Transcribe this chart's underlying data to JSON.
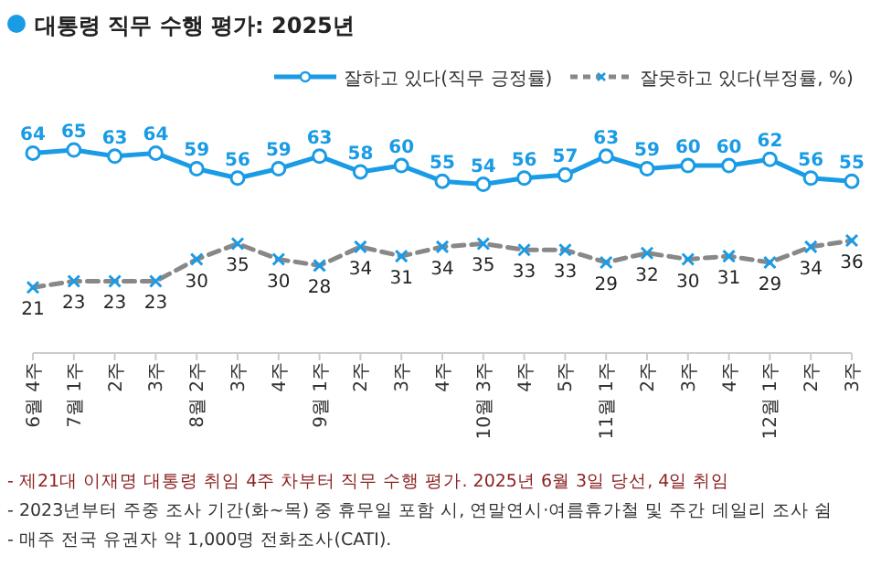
{
  "chart_data": {
    "type": "line",
    "title": "대통령 직무 수행 평가: 2025년",
    "categories": [
      "6월 4주",
      "7월 1주",
      "2주",
      "3주",
      "8월 2주",
      "3주",
      "4주",
      "9월 1주",
      "2주",
      "3주",
      "4주",
      "10월 3주",
      "4주",
      "5주",
      "11월 1주",
      "2주",
      "3주",
      "4주",
      "12월 1주",
      "2주",
      "3주"
    ],
    "series": [
      {
        "name": "잘하고 있다(직무 긍정률)",
        "color": "#1a9be6",
        "marker": "circle",
        "line_style": "solid",
        "values": [
          64,
          65,
          63,
          64,
          59,
          56,
          59,
          63,
          58,
          60,
          55,
          54,
          56,
          57,
          63,
          59,
          60,
          60,
          62,
          56,
          55
        ]
      },
      {
        "name": "잘못하고 있다(부정률, %)",
        "color": "#888888",
        "marker": "cross",
        "line_style": "dashed",
        "values": [
          21,
          23,
          23,
          23,
          30,
          35,
          30,
          28,
          34,
          31,
          34,
          35,
          33,
          33,
          29,
          32,
          30,
          31,
          29,
          34,
          36
        ]
      }
    ],
    "tick_labels": "x",
    "data_labels": true,
    "legend": "top right",
    "annotations": [
      "- 제21대 이재명 대통령 취임 4주 차부터 직무 수행 평가. 2025년 6월 3일 당선, 4일 취임",
      "- 2023년부터 주중 조사 기간(화~목) 중 휴무일 포함 시, 연말연시·여름휴가철 및 주간 데일리 조사 쉼",
      "- 매주 전국 유권자 약 1,000명 전화조사(CATI)."
    ]
  }
}
